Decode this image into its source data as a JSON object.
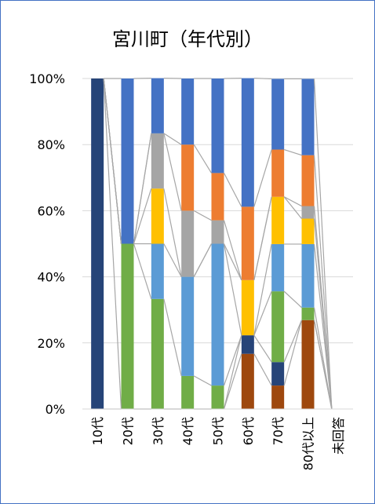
{
  "chart_data": {
    "type": "bar",
    "stacked": true,
    "percent_stacked": true,
    "title": "宮川町（年代別）",
    "categories": [
      "10代",
      "20代",
      "30代",
      "40代",
      "50代",
      "60代",
      "70代",
      "80代以上",
      "未回答"
    ],
    "ylim": [
      0,
      100
    ],
    "y_ticks": [
      "0%",
      "20%",
      "40%",
      "60%",
      "80%",
      "100%"
    ],
    "grid": true,
    "legend": "none",
    "series_lines": true,
    "series": [
      {
        "color": "#9e480e",
        "values": [
          0,
          0,
          0,
          0,
          0,
          16.7,
          7.1,
          26.9,
          0
        ]
      },
      {
        "color": "#264478",
        "values": [
          100,
          0,
          0,
          0,
          0,
          5.6,
          7.1,
          0,
          0
        ]
      },
      {
        "color": "#70ad47",
        "values": [
          0,
          50,
          33.3,
          10,
          7.1,
          0,
          21.4,
          3.8,
          0
        ]
      },
      {
        "color": "#5b9bd5",
        "values": [
          0,
          0,
          16.7,
          30,
          42.9,
          0,
          14.3,
          19.2,
          0
        ]
      },
      {
        "color": "#ffc000",
        "values": [
          0,
          0,
          16.7,
          0,
          0,
          16.7,
          14.3,
          7.7,
          0
        ]
      },
      {
        "color": "#a5a5a5",
        "values": [
          0,
          0,
          16.7,
          20,
          7.1,
          0,
          0,
          3.8,
          0
        ]
      },
      {
        "color": "#ed7d31",
        "values": [
          0,
          0,
          0,
          20,
          14.3,
          22.2,
          14.3,
          15.4,
          0
        ]
      },
      {
        "color": "#4472c4",
        "values": [
          0,
          50,
          16.7,
          20,
          28.6,
          38.9,
          21.4,
          23.1,
          0
        ]
      }
    ]
  }
}
